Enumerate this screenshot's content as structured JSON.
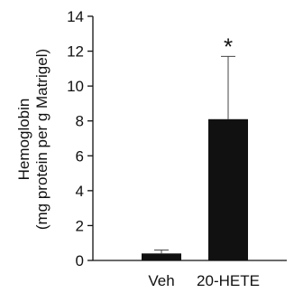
{
  "chart_data": {
    "type": "bar",
    "categories": [
      "Veh",
      "20-HETE"
    ],
    "values": [
      0.4,
      8.1
    ],
    "errors": [
      0.2,
      3.6
    ],
    "annotations": [
      {
        "category": "20-HETE",
        "text": "*"
      }
    ],
    "ylabel_line1": "Hemoglobin",
    "ylabel_line2": "(mg protein per g Matrigel)",
    "xlabel": "",
    "ylim": [
      0,
      14
    ],
    "yticks": [
      0,
      2,
      4,
      6,
      8,
      10,
      12,
      14
    ],
    "grid": false,
    "bar_color": "#111111"
  }
}
